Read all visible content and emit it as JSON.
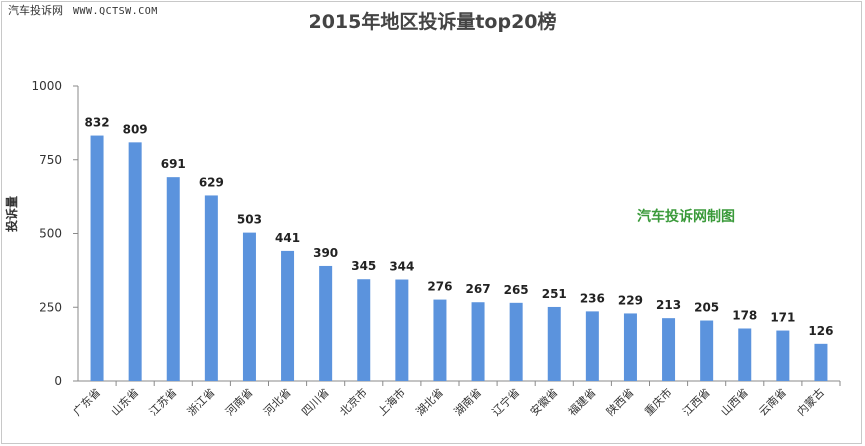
{
  "watermark": {
    "site": "汽车投诉网",
    "url": "WWW.QCTSW.COM"
  },
  "credit": "汽车投诉网制图",
  "chart_data": {
    "type": "bar",
    "title": "2015年地区投诉量top20榜",
    "xlabel": "",
    "ylabel": "投诉量",
    "ylim": [
      0,
      1000
    ],
    "yticks": [
      0,
      250,
      500,
      750,
      1000
    ],
    "grid": false,
    "legend": "none",
    "categories": [
      "广东省",
      "山东省",
      "江苏省",
      "浙江省",
      "河南省",
      "河北省",
      "四川省",
      "北京市",
      "上海市",
      "湖北省",
      "湖南省",
      "辽宁省",
      "安徽省",
      "福建省",
      "陕西省",
      "重庆市",
      "江西省",
      "山西省",
      "云南省",
      "内蒙古"
    ],
    "values": [
      832,
      809,
      691,
      629,
      503,
      441,
      390,
      345,
      344,
      276,
      267,
      265,
      251,
      236,
      229,
      213,
      205,
      178,
      171,
      126
    ],
    "colors": {
      "bar": "#5b93dd",
      "axis": "#8a8a8a",
      "text": "#333333"
    }
  }
}
